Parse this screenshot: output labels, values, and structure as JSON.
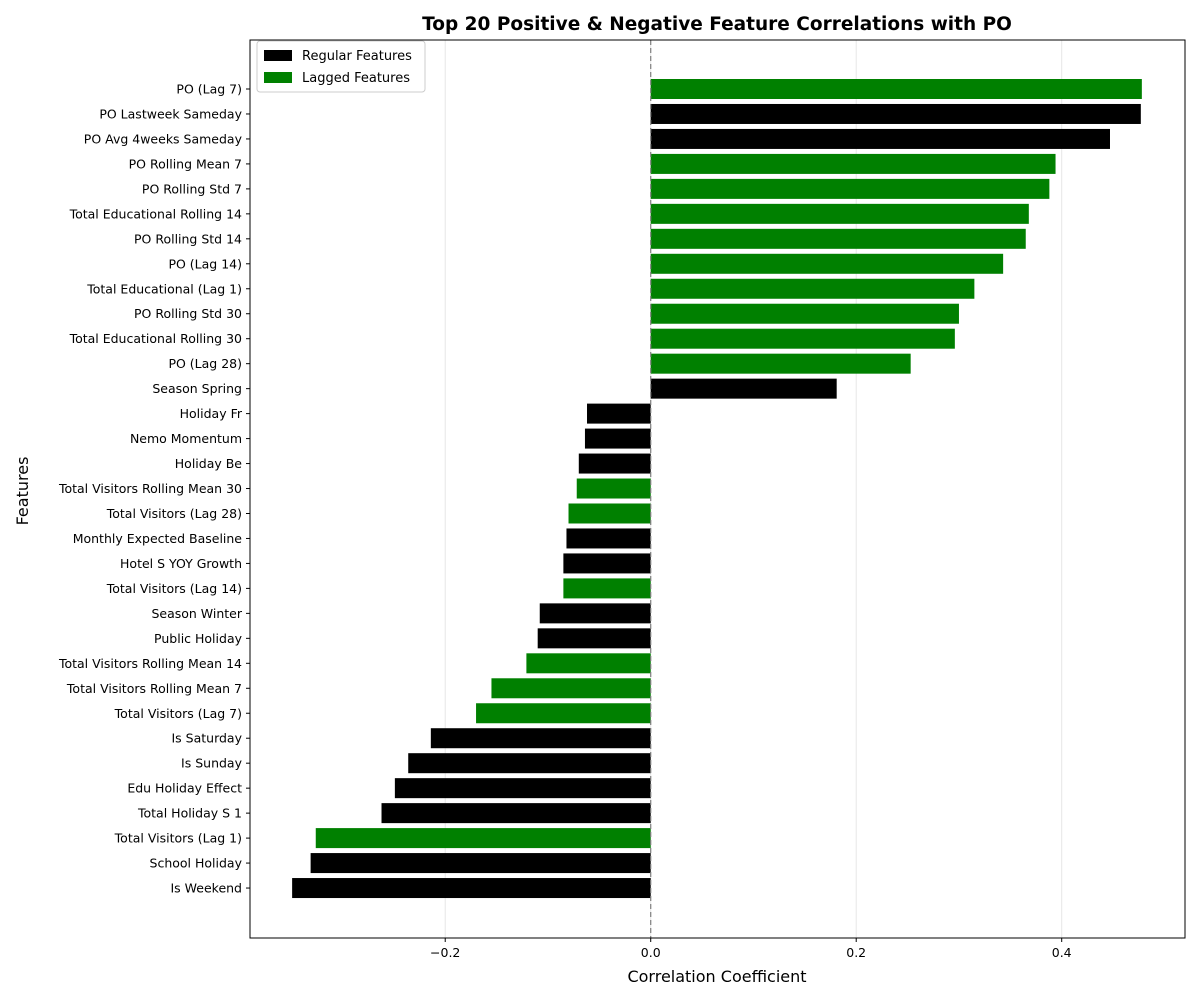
{
  "chart_data": {
    "type": "bar",
    "orientation": "horizontal",
    "title": "Top 20 Positive & Negative Feature Correlations with PO",
    "xlabel": "Correlation Coefficient",
    "ylabel": "Features",
    "xlim": [
      -0.39,
      0.52
    ],
    "xticks": [
      -0.2,
      0.0,
      0.2,
      0.4
    ],
    "xtick_labels": [
      "−0.2",
      "0.0",
      "0.2",
      "0.4"
    ],
    "grid": "x",
    "reference_line": 0.0,
    "legend_position": "top-left",
    "legend": [
      {
        "name": "Regular Features",
        "color": "#000000"
      },
      {
        "name": "Lagged Features",
        "color": "#008000"
      }
    ],
    "categories": [
      "PO (Lag 7)",
      "PO Lastweek Sameday",
      "PO Avg 4weeks Sameday",
      "PO Rolling Mean 7",
      "PO Rolling Std 7",
      "Total Educational Rolling 14",
      "PO Rolling Std 14",
      "PO (Lag 14)",
      "Total Educational (Lag 1)",
      "PO Rolling Std 30",
      "Total Educational Rolling 30",
      "PO (Lag 28)",
      "Season Spring",
      "Holiday Fr",
      "Nemo Momentum",
      "Holiday Be",
      "Total Visitors Rolling Mean 30",
      "Total Visitors (Lag 28)",
      "Monthly Expected Baseline",
      "Hotel S YOY Growth",
      "Total Visitors (Lag 14)",
      "Season Winter",
      "Public Holiday",
      "Total Visitors Rolling Mean 14",
      "Total Visitors Rolling Mean 7",
      "Total Visitors (Lag 7)",
      "Is Saturday",
      "Is Sunday",
      "Edu Holiday Effect",
      "Total Holiday S 1",
      "Total Visitors (Lag 1)",
      "School Holiday",
      "Is Weekend"
    ],
    "values": [
      0.478,
      0.477,
      0.447,
      0.394,
      0.388,
      0.368,
      0.365,
      0.343,
      0.315,
      0.3,
      0.296,
      0.253,
      0.181,
      -0.062,
      -0.064,
      -0.07,
      -0.072,
      -0.08,
      -0.082,
      -0.085,
      -0.085,
      -0.108,
      -0.11,
      -0.121,
      -0.155,
      -0.17,
      -0.214,
      -0.236,
      -0.249,
      -0.262,
      -0.326,
      -0.331,
      -0.349
    ],
    "groups": [
      "Lagged",
      "Regular",
      "Regular",
      "Lagged",
      "Lagged",
      "Lagged",
      "Lagged",
      "Lagged",
      "Lagged",
      "Lagged",
      "Lagged",
      "Lagged",
      "Regular",
      "Regular",
      "Regular",
      "Regular",
      "Lagged",
      "Lagged",
      "Regular",
      "Regular",
      "Lagged",
      "Regular",
      "Regular",
      "Lagged",
      "Lagged",
      "Lagged",
      "Regular",
      "Regular",
      "Regular",
      "Regular",
      "Lagged",
      "Regular",
      "Regular"
    ]
  }
}
